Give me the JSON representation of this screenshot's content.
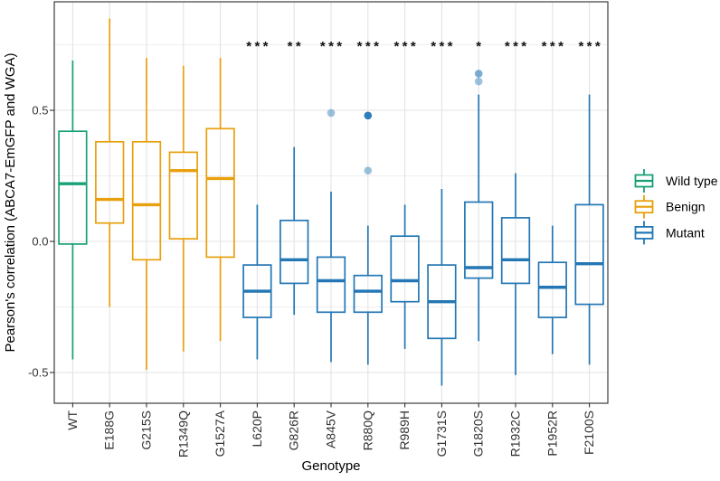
{
  "figure_title": "",
  "chart_data": {
    "type": "boxplot",
    "title": "",
    "xlabel": "Genotype",
    "ylabel": "Pearson's correlation (ABCA7-EmGFP and WGA)",
    "ylim": [
      -0.62,
      0.91
    ],
    "grid": true,
    "y_major_ticks": [
      0.5,
      0.0,
      -0.5
    ],
    "y_tick_labels": [
      "0.5",
      "0.0",
      "-0.5"
    ],
    "y_minor_gridlines": [
      0.75,
      0.25,
      -0.25
    ],
    "legend_position": "right",
    "legend": [
      {
        "label": "Wild type",
        "color": "#17a077"
      },
      {
        "label": "Benign",
        "color": "#e8a00d"
      },
      {
        "label": "Mutant",
        "color": "#2377b4"
      }
    ],
    "boxes": [
      {
        "genotype": "WT",
        "group": "Wild type",
        "color": "#17a077",
        "whisker_low": -0.45,
        "q1": -0.01,
        "median": 0.22,
        "q3": 0.42,
        "whisker_high": 0.69,
        "outliers": [],
        "significance": ""
      },
      {
        "genotype": "E188G",
        "group": "Benign",
        "color": "#e8a00d",
        "whisker_low": -0.25,
        "q1": 0.07,
        "median": 0.16,
        "q3": 0.38,
        "whisker_high": 0.85,
        "outliers": [],
        "significance": ""
      },
      {
        "genotype": "G215S",
        "group": "Benign",
        "color": "#e8a00d",
        "whisker_low": -0.49,
        "q1": -0.07,
        "median": 0.14,
        "q3": 0.38,
        "whisker_high": 0.7,
        "outliers": [],
        "significance": ""
      },
      {
        "genotype": "R1349Q",
        "group": "Benign",
        "color": "#e8a00d",
        "whisker_low": -0.42,
        "q1": 0.01,
        "median": 0.27,
        "q3": 0.34,
        "whisker_high": 0.67,
        "outliers": [],
        "significance": ""
      },
      {
        "genotype": "G1527A",
        "group": "Benign",
        "color": "#e8a00d",
        "whisker_low": -0.38,
        "q1": -0.06,
        "median": 0.24,
        "q3": 0.43,
        "whisker_high": 0.7,
        "outliers": [],
        "significance": ""
      },
      {
        "genotype": "L620P",
        "group": "Mutant",
        "color": "#2377b4",
        "whisker_low": -0.45,
        "q1": -0.29,
        "median": -0.19,
        "q3": -0.09,
        "whisker_high": 0.14,
        "outliers": [],
        "significance": "***"
      },
      {
        "genotype": "G826R",
        "group": "Mutant",
        "color": "#2377b4",
        "whisker_low": -0.28,
        "q1": -0.16,
        "median": -0.07,
        "q3": 0.08,
        "whisker_high": 0.36,
        "outliers": [],
        "significance": "**"
      },
      {
        "genotype": "A845V",
        "group": "Mutant",
        "color": "#2377b4",
        "whisker_low": -0.46,
        "q1": -0.27,
        "median": -0.15,
        "q3": -0.06,
        "whisker_high": 0.19,
        "outliers": [
          {
            "value": 0.49,
            "alpha": 0.45
          }
        ],
        "significance": "***"
      },
      {
        "genotype": "R880Q",
        "group": "Mutant",
        "color": "#2377b4",
        "whisker_low": -0.47,
        "q1": -0.27,
        "median": -0.19,
        "q3": -0.13,
        "whisker_high": 0.06,
        "outliers": [
          {
            "value": 0.48,
            "alpha": 0.95
          },
          {
            "value": 0.27,
            "alpha": 0.45
          }
        ],
        "significance": "***"
      },
      {
        "genotype": "R989H",
        "group": "Mutant",
        "color": "#2377b4",
        "whisker_low": -0.41,
        "q1": -0.23,
        "median": -0.15,
        "q3": 0.02,
        "whisker_high": 0.14,
        "outliers": [],
        "significance": "***"
      },
      {
        "genotype": "G1731S",
        "group": "Mutant",
        "color": "#2377b4",
        "whisker_low": -0.55,
        "q1": -0.37,
        "median": -0.23,
        "q3": -0.09,
        "whisker_high": 0.2,
        "outliers": [],
        "significance": "***"
      },
      {
        "genotype": "G1820S",
        "group": "Mutant",
        "color": "#2377b4",
        "whisker_low": -0.38,
        "q1": -0.14,
        "median": -0.1,
        "q3": 0.15,
        "whisker_high": 0.56,
        "outliers": [
          {
            "value": 0.64,
            "alpha": 0.6
          },
          {
            "value": 0.61,
            "alpha": 0.45
          }
        ],
        "significance": "*"
      },
      {
        "genotype": "R1932C",
        "group": "Mutant",
        "color": "#2377b4",
        "whisker_low": -0.51,
        "q1": -0.16,
        "median": -0.07,
        "q3": 0.09,
        "whisker_high": 0.26,
        "outliers": [],
        "significance": "***"
      },
      {
        "genotype": "P1952R",
        "group": "Mutant",
        "color": "#2377b4",
        "whisker_low": -0.43,
        "q1": -0.29,
        "median": -0.175,
        "q3": -0.08,
        "whisker_high": 0.06,
        "outliers": [],
        "significance": "***"
      },
      {
        "genotype": "F2100S",
        "group": "Mutant",
        "color": "#2377b4",
        "whisker_low": -0.47,
        "q1": -0.24,
        "median": -0.085,
        "q3": 0.14,
        "whisker_high": 0.56,
        "outliers": [],
        "significance": "***"
      }
    ]
  }
}
